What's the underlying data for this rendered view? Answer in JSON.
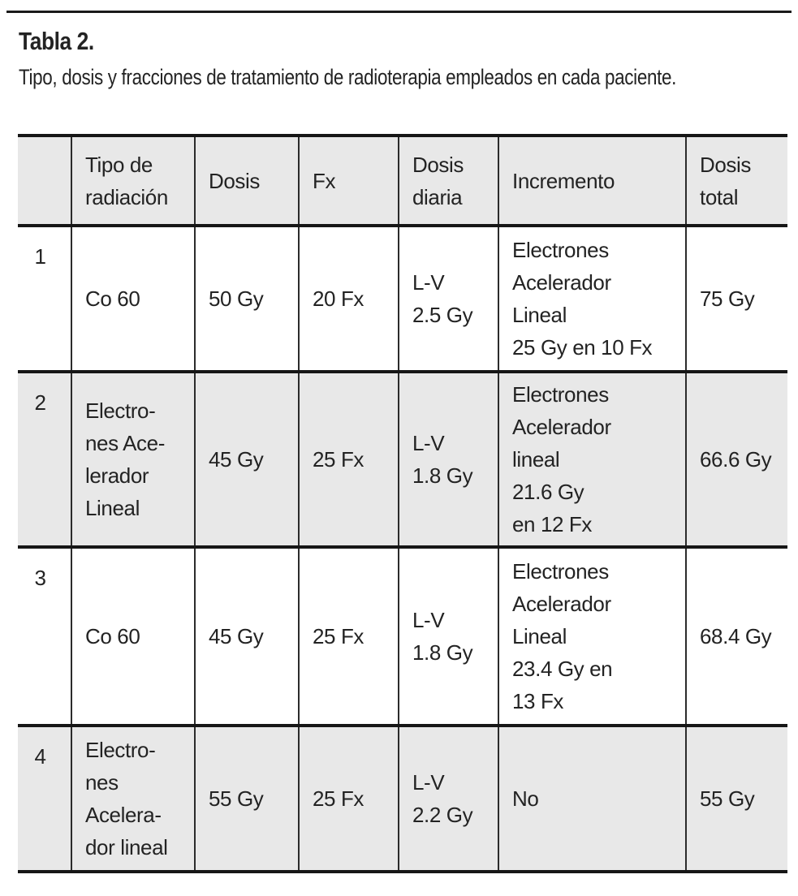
{
  "page": {
    "title": "Tabla 2.",
    "caption": "Tipo, dosis y fracciones de tratamiento de radioterapia empleados en cada paciente."
  },
  "colors": {
    "row_shade": "#e8e8e8",
    "rule": "#161616",
    "text": "#232323"
  },
  "table": {
    "headers": [
      "",
      "Tipo de\nradiación",
      "Dosis",
      "Fx",
      "Dosis\ndiaria",
      "Incremento",
      "Dosis\ntotal"
    ],
    "cell_names": [
      "row-number",
      "tipo-radiacion-cell",
      "dosis-cell",
      "fx-cell",
      "dosis-diaria-cell",
      "incremento-cell",
      "dosis-total-cell"
    ],
    "rows": [
      {
        "shaded": false,
        "cells": [
          "1",
          "Co 60",
          "50 Gy",
          "20 Fx",
          "L-V\n2.5 Gy",
          "Electrones\nAcelerador\nLineal\n25 Gy en 10 Fx",
          "75 Gy"
        ]
      },
      {
        "shaded": true,
        "cells": [
          "2",
          "Electro-\nnes Ace-\nlerador\nLineal",
          "45 Gy",
          "25 Fx",
          "L-V\n1.8 Gy",
          "Electrones\nAcelerador\nlineal\n21.6 Gy\nen 12 Fx",
          "66.6 Gy"
        ]
      },
      {
        "shaded": false,
        "cells": [
          "3",
          "Co 60",
          "45 Gy",
          "25 Fx",
          "L-V\n1.8 Gy",
          "Electrones\nAcelerador\nLineal\n23.4 Gy en\n13 Fx",
          "68.4 Gy"
        ]
      },
      {
        "shaded": true,
        "cells": [
          "4",
          "Electro-\nnes\nAcelera-\ndor lineal",
          "55 Gy",
          "25 Fx",
          "L-V\n2.2 Gy",
          "No",
          "55 Gy"
        ]
      }
    ]
  }
}
